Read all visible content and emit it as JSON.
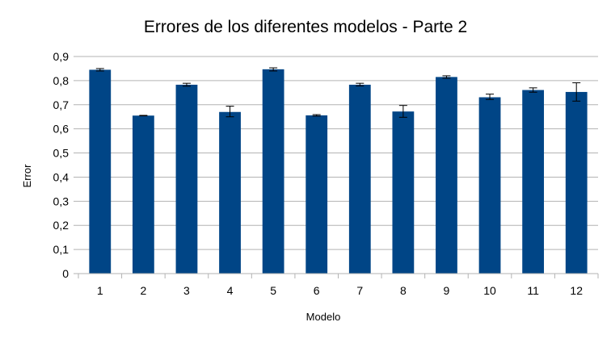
{
  "chart_data": {
    "type": "bar",
    "title": "Errores de los diferentes modelos - Parte 2",
    "xlabel": "Modelo",
    "ylabel": "Error",
    "categories": [
      "1",
      "2",
      "3",
      "4",
      "5",
      "6",
      "7",
      "8",
      "9",
      "10",
      "11",
      "12"
    ],
    "values": [
      0.845,
      0.655,
      0.783,
      0.67,
      0.847,
      0.656,
      0.783,
      0.672,
      0.815,
      0.731,
      0.761,
      0.753
    ],
    "error_low": [
      0.84,
      0.654,
      0.777,
      0.65,
      0.84,
      0.653,
      0.778,
      0.648,
      0.81,
      0.722,
      0.752,
      0.715
    ],
    "error_high": [
      0.85,
      0.656,
      0.789,
      0.694,
      0.853,
      0.659,
      0.789,
      0.697,
      0.82,
      0.744,
      0.77,
      0.791
    ],
    "ylim": [
      0,
      0.9
    ],
    "yticks": [
      "0",
      "0,1",
      "0,2",
      "0,3",
      "0,4",
      "0,5",
      "0,6",
      "0,7",
      "0,8",
      "0,9"
    ],
    "grid": true,
    "legend": "none",
    "bar_color": "#004586",
    "grid_color": "#b3b3b3"
  }
}
